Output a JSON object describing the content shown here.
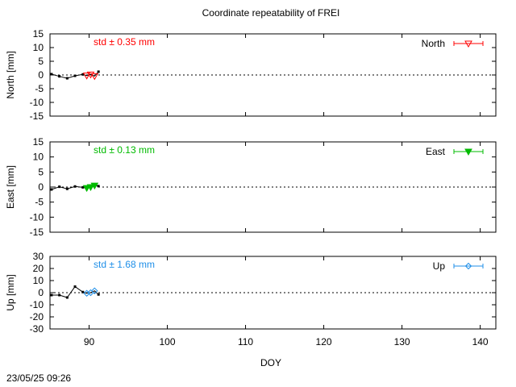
{
  "title": "Coordinate repeatability of FREI",
  "footer_timestamp": "23/05/25 09:26",
  "chart_data": {
    "type": "line",
    "xlabel": "DOY",
    "xlim": [
      85,
      142
    ],
    "xticks": [
      90,
      100,
      110,
      120,
      130,
      140
    ],
    "panels": [
      {
        "key": "north",
        "ylabel": "North [mm]",
        "ylim": [
          -15,
          15
        ],
        "yticks": [
          15,
          10,
          5,
          0,
          -5,
          -10,
          -15
        ],
        "std_label": "std ± 0.35 mm",
        "legend": "North",
        "color": "#ff0000",
        "marker": "triangle-down-open",
        "x": [
          85.2,
          86.2,
          87.2,
          88.2,
          89.2,
          89.7,
          90.2,
          90.7,
          91.2
        ],
        "y": [
          0.3,
          -0.5,
          -1.2,
          -0.3,
          0.2,
          -0.2,
          0.2,
          -0.4,
          1.2
        ]
      },
      {
        "key": "east",
        "ylabel": "East [mm]",
        "ylim": [
          -15,
          15
        ],
        "yticks": [
          15,
          10,
          5,
          0,
          -5,
          -10,
          -15
        ],
        "std_label": "std ± 0.13 mm",
        "legend": "East",
        "color": "#00bb00",
        "marker": "triangle-down-filled",
        "x": [
          85.2,
          86.2,
          87.2,
          88.2,
          89.2,
          89.7,
          90.2,
          90.7,
          91.2
        ],
        "y": [
          -0.8,
          0.1,
          -0.6,
          0.2,
          -0.1,
          -0.3,
          0.0,
          0.5,
          0.3
        ]
      },
      {
        "key": "up",
        "ylabel": "Up [mm]",
        "ylim": [
          -30,
          30
        ],
        "yticks": [
          30,
          20,
          10,
          0,
          -10,
          -20,
          -30
        ],
        "std_label": "std ± 1.68 mm",
        "legend": "Up",
        "color": "#1f8fe8",
        "marker": "diamond-open",
        "x": [
          85.2,
          86.2,
          87.2,
          88.2,
          89.2,
          89.7,
          90.2,
          90.7,
          91.2
        ],
        "y": [
          -2.0,
          -2.0,
          -4.0,
          5.0,
          0.5,
          -0.5,
          0.0,
          1.5,
          -1.5
        ]
      }
    ]
  }
}
